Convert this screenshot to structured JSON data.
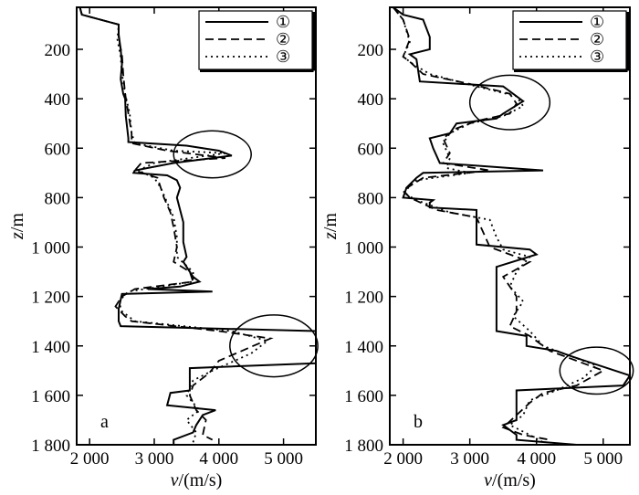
{
  "chart_data": [
    {
      "type": "line",
      "panel": "a",
      "xlabel": "v/(m/s)",
      "ylabel": "z/m",
      "xlim": [
        1800,
        5500
      ],
      "ylim": [
        1800,
        30
      ],
      "y_inverted": true,
      "x_ticks": [
        2000,
        3000,
        4000,
        5000
      ],
      "x_tick_labels": [
        "2 000",
        "3 000",
        "4 000",
        "5 000"
      ],
      "y_ticks": [
        200,
        400,
        600,
        800,
        1000,
        1200,
        1400,
        1600,
        1800
      ],
      "y_tick_labels": [
        "200",
        "400",
        "600",
        "800",
        "1 000",
        "1 200",
        "1 400",
        "1 600",
        "1 800"
      ],
      "legend": {
        "placement": "top-right",
        "labels": [
          "①",
          "②",
          "③"
        ]
      },
      "highlights": [
        {
          "cx": 3900,
          "cy": 625,
          "rx": 600,
          "ry": 95
        },
        {
          "cx": 4850,
          "cy": 1400,
          "rx": 680,
          "ry": 125
        }
      ],
      "series": [
        {
          "name": "①",
          "style": "solid",
          "points": [
            [
              1850,
              30
            ],
            [
              1880,
              60
            ],
            [
              2450,
              100
            ],
            [
              2450,
              140
            ],
            [
              2480,
              200
            ],
            [
              2500,
              260
            ],
            [
              2480,
              320
            ],
            [
              2520,
              380
            ],
            [
              2550,
              400
            ],
            [
              2560,
              470
            ],
            [
              2600,
              560
            ],
            [
              2600,
              575
            ],
            [
              3500,
              590
            ],
            [
              4000,
              610
            ],
            [
              4200,
              630
            ],
            [
              3300,
              660
            ],
            [
              2700,
              690
            ],
            [
              2680,
              700
            ],
            [
              3200,
              710
            ],
            [
              3350,
              730
            ],
            [
              3400,
              760
            ],
            [
              3350,
              800
            ],
            [
              3400,
              850
            ],
            [
              3450,
              900
            ],
            [
              3450,
              980
            ],
            [
              3500,
              1040
            ],
            [
              3450,
              1060
            ],
            [
              3600,
              1120
            ],
            [
              3700,
              1140
            ],
            [
              3400,
              1160
            ],
            [
              2900,
              1170
            ],
            [
              3900,
              1180
            ],
            [
              2500,
              1190
            ],
            [
              2450,
              1250
            ],
            [
              2450,
              1300
            ],
            [
              2480,
              1320
            ],
            [
              5500,
              1340
            ],
            [
              5500,
              1470
            ],
            [
              3550,
              1490
            ],
            [
              3550,
              1580
            ],
            [
              3250,
              1590
            ],
            [
              3200,
              1640
            ],
            [
              3950,
              1660
            ],
            [
              3750,
              1680
            ],
            [
              3650,
              1720
            ],
            [
              3600,
              1750
            ],
            [
              3300,
              1780
            ],
            [
              3300,
              1800
            ]
          ]
        },
        {
          "name": "②",
          "style": "dashed",
          "points": [
            [
              1850,
              30
            ],
            [
              1880,
              60
            ],
            [
              2450,
              100
            ],
            [
              2450,
              160
            ],
            [
              2500,
              220
            ],
            [
              2520,
              300
            ],
            [
              2550,
              380
            ],
            [
              2600,
              460
            ],
            [
              2650,
              540
            ],
            [
              2650,
              580
            ],
            [
              3200,
              610
            ],
            [
              4100,
              640
            ],
            [
              2800,
              660
            ],
            [
              2700,
              690
            ],
            [
              3050,
              720
            ],
            [
              3100,
              760
            ],
            [
              3150,
              800
            ],
            [
              3250,
              860
            ],
            [
              3300,
              920
            ],
            [
              3350,
              1000
            ],
            [
              3300,
              1060
            ],
            [
              3550,
              1100
            ],
            [
              3600,
              1140
            ],
            [
              2700,
              1170
            ],
            [
              2500,
              1200
            ],
            [
              2400,
              1240
            ],
            [
              2550,
              1280
            ],
            [
              2650,
              1300
            ],
            [
              4000,
              1340
            ],
            [
              4800,
              1370
            ],
            [
              4000,
              1460
            ],
            [
              3850,
              1510
            ],
            [
              3600,
              1560
            ],
            [
              3550,
              1600
            ],
            [
              3650,
              1660
            ],
            [
              3800,
              1700
            ],
            [
              3750,
              1760
            ],
            [
              3900,
              1780
            ]
          ]
        },
        {
          "name": "③",
          "style": "dotted",
          "points": [
            [
              1850,
              30
            ],
            [
              1880,
              60
            ],
            [
              2450,
              100
            ],
            [
              2430,
              160
            ],
            [
              2480,
              230
            ],
            [
              2500,
              300
            ],
            [
              2550,
              380
            ],
            [
              2620,
              460
            ],
            [
              2650,
              540
            ],
            [
              2700,
              580
            ],
            [
              3300,
              610
            ],
            [
              4100,
              620
            ],
            [
              3000,
              660
            ],
            [
              2750,
              690
            ],
            [
              3000,
              720
            ],
            [
              3100,
              760
            ],
            [
              3200,
              820
            ],
            [
              3300,
              880
            ],
            [
              3350,
              960
            ],
            [
              3350,
              1040
            ],
            [
              3600,
              1100
            ],
            [
              3600,
              1140
            ],
            [
              2600,
              1180
            ],
            [
              2450,
              1220
            ],
            [
              2500,
              1260
            ],
            [
              2700,
              1300
            ],
            [
              4200,
              1340
            ],
            [
              4750,
              1380
            ],
            [
              4500,
              1430
            ],
            [
              3900,
              1500
            ],
            [
              3600,
              1540
            ],
            [
              3500,
              1600
            ],
            [
              3700,
              1660
            ],
            [
              3500,
              1700
            ],
            [
              3650,
              1750
            ],
            [
              3600,
              1790
            ]
          ]
        }
      ]
    },
    {
      "type": "line",
      "panel": "b",
      "xlabel": "v/(m/s)",
      "ylabel": "z/m",
      "xlim": [
        1800,
        5400
      ],
      "ylim": [
        1800,
        30
      ],
      "y_inverted": true,
      "x_ticks": [
        2000,
        3000,
        4000,
        5000
      ],
      "x_tick_labels": [
        "2 000",
        "3 000",
        "4 000",
        "5 000"
      ],
      "y_ticks": [
        200,
        400,
        600,
        800,
        1000,
        1200,
        1400,
        1600,
        1800
      ],
      "y_tick_labels": [
        "200",
        "400",
        "600",
        "800",
        "1 000",
        "1 200",
        "1 400",
        "1 600",
        "1 800"
      ],
      "legend": {
        "placement": "top-right",
        "labels": [
          "①",
          "②",
          "③"
        ]
      },
      "highlights": [
        {
          "cx": 3600,
          "cy": 415,
          "rx": 600,
          "ry": 110
        },
        {
          "cx": 4900,
          "cy": 1500,
          "rx": 550,
          "ry": 95
        }
      ],
      "series": [
        {
          "name": "①",
          "style": "solid",
          "points": [
            [
              1850,
              30
            ],
            [
              2000,
              60
            ],
            [
              2300,
              80
            ],
            [
              2400,
              150
            ],
            [
              2400,
              200
            ],
            [
              2100,
              220
            ],
            [
              2200,
              240
            ],
            [
              2250,
              330
            ],
            [
              3500,
              350
            ],
            [
              3800,
              410
            ],
            [
              3500,
              460
            ],
            [
              3400,
              480
            ],
            [
              2800,
              500
            ],
            [
              2700,
              540
            ],
            [
              2400,
              560
            ],
            [
              2450,
              600
            ],
            [
              2550,
              660
            ],
            [
              4100,
              690
            ],
            [
              2300,
              700
            ],
            [
              2200,
              720
            ],
            [
              2050,
              760
            ],
            [
              2000,
              800
            ],
            [
              2450,
              810
            ],
            [
              2400,
              820
            ],
            [
              2400,
              840
            ],
            [
              3100,
              850
            ],
            [
              3100,
              990
            ],
            [
              3900,
              1010
            ],
            [
              4000,
              1030
            ],
            [
              3400,
              1080
            ],
            [
              3400,
              1340
            ],
            [
              3850,
              1360
            ],
            [
              3850,
              1400
            ],
            [
              4300,
              1420
            ],
            [
              4500,
              1440
            ],
            [
              5400,
              1520
            ],
            [
              5300,
              1560
            ],
            [
              3700,
              1580
            ],
            [
              3700,
              1700
            ],
            [
              3500,
              1720
            ],
            [
              3700,
              1760
            ],
            [
              3700,
              1780
            ],
            [
              4600,
              1800
            ]
          ]
        },
        {
          "name": "②",
          "style": "dashed",
          "points": [
            [
              1850,
              30
            ],
            [
              2000,
              80
            ],
            [
              2100,
              160
            ],
            [
              2000,
              230
            ],
            [
              2100,
              250
            ],
            [
              2300,
              300
            ],
            [
              3000,
              340
            ],
            [
              3600,
              380
            ],
            [
              3700,
              420
            ],
            [
              3600,
              460
            ],
            [
              3100,
              490
            ],
            [
              2800,
              520
            ],
            [
              2600,
              560
            ],
            [
              2700,
              620
            ],
            [
              2600,
              660
            ],
            [
              3300,
              690
            ],
            [
              2300,
              720
            ],
            [
              2000,
              770
            ],
            [
              2100,
              800
            ],
            [
              2500,
              850
            ],
            [
              3100,
              880
            ],
            [
              3200,
              940
            ],
            [
              3300,
              1000
            ],
            [
              3700,
              1040
            ],
            [
              3900,
              1060
            ],
            [
              3500,
              1120
            ],
            [
              3700,
              1200
            ],
            [
              3700,
              1260
            ],
            [
              3600,
              1320
            ],
            [
              3900,
              1360
            ],
            [
              4200,
              1420
            ],
            [
              4600,
              1460
            ],
            [
              5000,
              1500
            ],
            [
              4600,
              1560
            ],
            [
              4100,
              1590
            ],
            [
              3900,
              1630
            ],
            [
              3700,
              1680
            ],
            [
              3500,
              1730
            ],
            [
              3800,
              1760
            ],
            [
              4200,
              1780
            ]
          ]
        },
        {
          "name": "③",
          "style": "dotted",
          "points": [
            [
              1850,
              30
            ],
            [
              2000,
              80
            ],
            [
              2100,
              170
            ],
            [
              2000,
              230
            ],
            [
              2150,
              260
            ],
            [
              2400,
              300
            ],
            [
              3100,
              350
            ],
            [
              3700,
              390
            ],
            [
              3800,
              430
            ],
            [
              3500,
              470
            ],
            [
              3000,
              500
            ],
            [
              2700,
              540
            ],
            [
              2600,
              580
            ],
            [
              2700,
              640
            ],
            [
              2650,
              680
            ],
            [
              3000,
              700
            ],
            [
              2200,
              730
            ],
            [
              2000,
              780
            ],
            [
              2200,
              810
            ],
            [
              2700,
              860
            ],
            [
              3300,
              890
            ],
            [
              3400,
              960
            ],
            [
              3500,
              1010
            ],
            [
              3900,
              1040
            ],
            [
              3700,
              1100
            ],
            [
              3600,
              1160
            ],
            [
              3800,
              1220
            ],
            [
              3650,
              1280
            ],
            [
              3900,
              1340
            ],
            [
              4100,
              1400
            ],
            [
              4500,
              1440
            ],
            [
              4900,
              1480
            ],
            [
              4700,
              1530
            ],
            [
              4300,
              1580
            ],
            [
              3900,
              1620
            ],
            [
              3800,
              1680
            ],
            [
              3600,
              1720
            ],
            [
              3900,
              1760
            ],
            [
              4100,
              1790
            ]
          ]
        }
      ]
    }
  ]
}
